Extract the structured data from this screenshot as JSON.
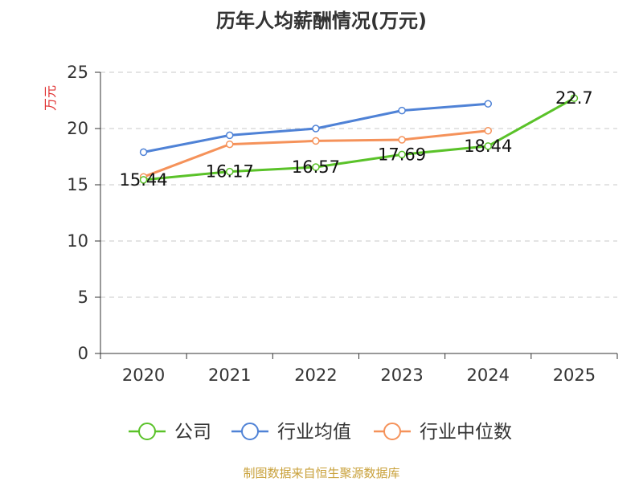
{
  "title": "历年人均薪酬情况(万元)",
  "source": "制图数据来自恒生聚源数据库",
  "chart_data": {
    "type": "line",
    "title": "历年人均薪酬情况(万元)",
    "xlabel": "",
    "ylabel": "万元",
    "categories": [
      "2020",
      "2021",
      "2022",
      "2023",
      "2024",
      "2025"
    ],
    "ylim": [
      0,
      25
    ],
    "yticks": [
      0,
      5,
      10,
      15,
      20,
      25
    ],
    "grid": true,
    "legend_position": "bottom",
    "series": [
      {
        "name": "公司",
        "color": "#5ac229",
        "values": [
          15.44,
          16.17,
          16.57,
          17.69,
          18.44,
          22.7
        ],
        "labels": [
          "15.44",
          "16.17",
          "16.57",
          "17.69",
          "18.44",
          "22.7"
        ]
      },
      {
        "name": "行业均值",
        "color": "#4f82d6",
        "values": [
          17.9,
          19.4,
          20.0,
          21.6,
          22.2,
          null
        ]
      },
      {
        "name": "行业中位数",
        "color": "#f5925a",
        "values": [
          15.7,
          18.6,
          18.9,
          19.0,
          19.8,
          null
        ]
      }
    ]
  }
}
